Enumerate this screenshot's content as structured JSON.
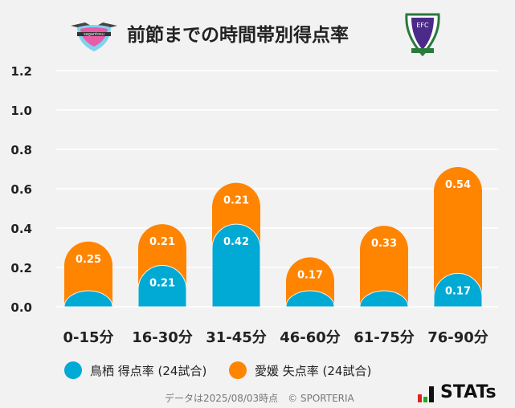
{
  "title": "前節までの時間帯別得点率",
  "logos": {
    "left": "sagantosu",
    "right": "EFC"
  },
  "chart_data": {
    "type": "bar",
    "stacked": true,
    "categories": [
      "0-15分",
      "16-30分",
      "31-45分",
      "46-60分",
      "61-75分",
      "76-90分"
    ],
    "series": [
      {
        "name": "鳥栖 得点率 (24試合)",
        "color": "#00aad4",
        "values": [
          0,
          0.21,
          0.42,
          0,
          0,
          0.17
        ]
      },
      {
        "name": "愛媛 失点率 (24試合)",
        "color": "#ff8400",
        "values": [
          0.25,
          0.21,
          0.21,
          0.17,
          0.33,
          0.54
        ]
      }
    ],
    "yticks": [
      "0.0",
      "0.2",
      "0.4",
      "0.6",
      "0.8",
      "1.0",
      "1.2"
    ],
    "ylim": [
      0,
      1.2
    ],
    "grid": true,
    "legend": "bottom"
  },
  "footer": "データは2025/08/03時点　© SPORTERIA",
  "brand": "STATs"
}
